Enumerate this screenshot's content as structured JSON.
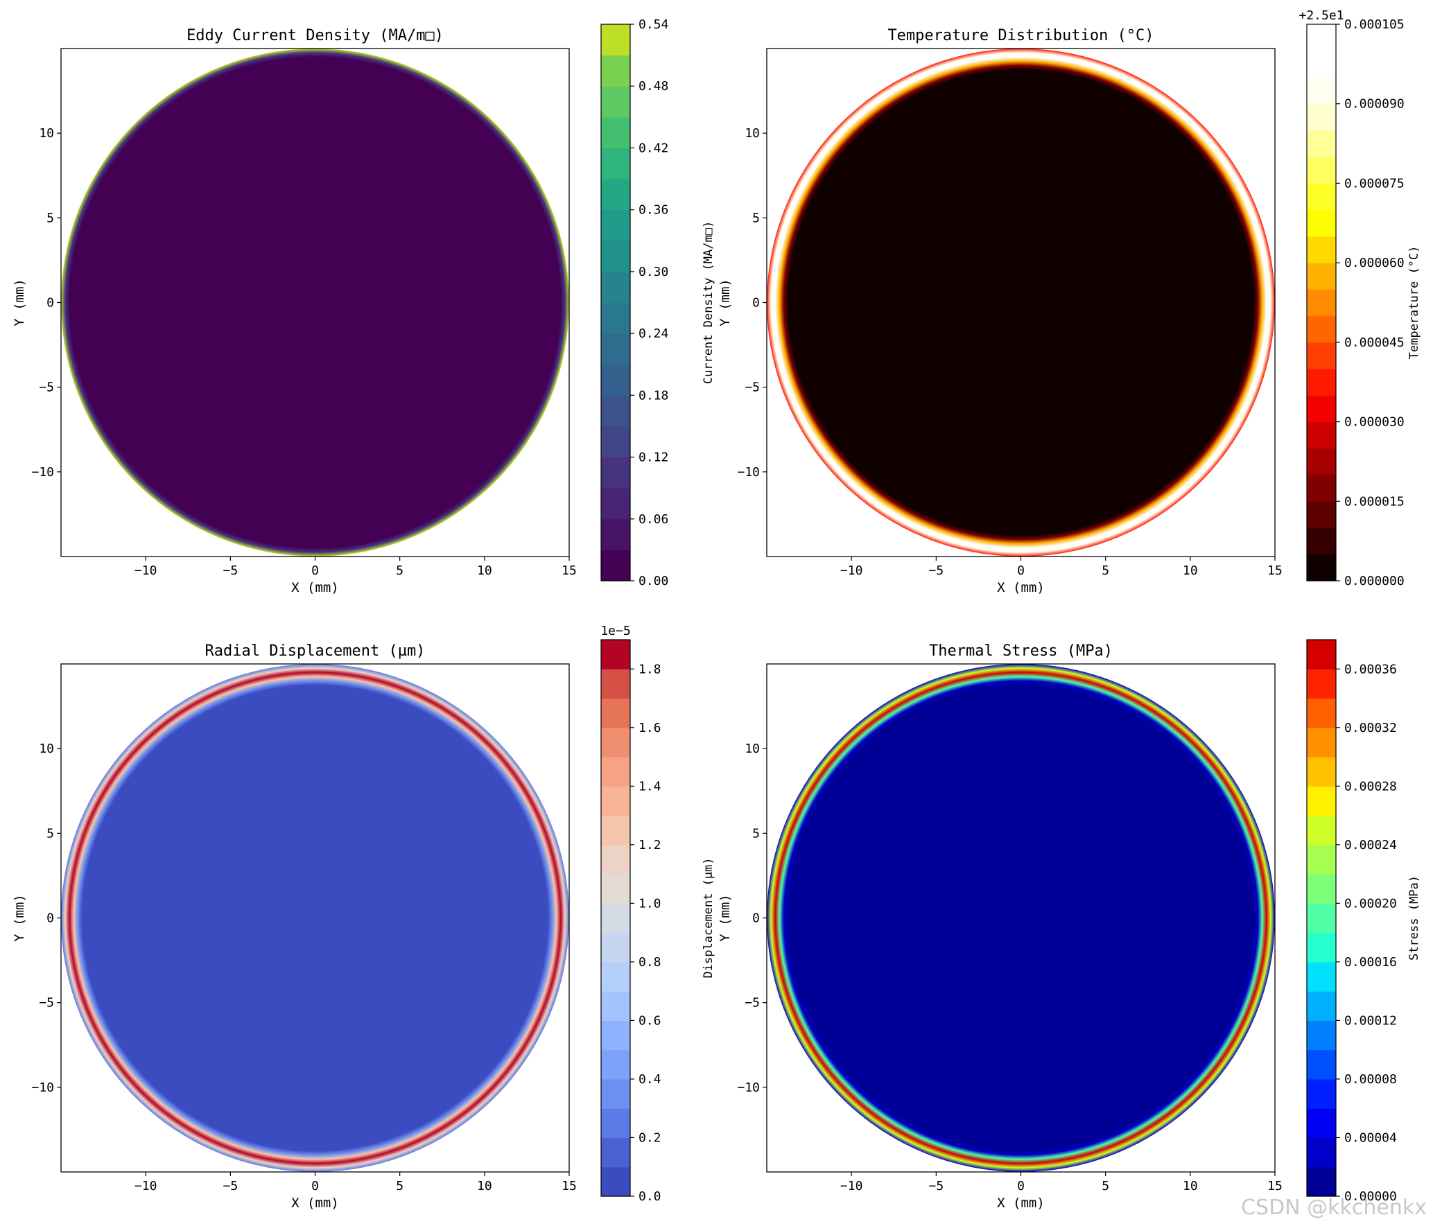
{
  "watermark": "CSDN @kkchenkx",
  "chart_data": [
    {
      "type": "heatmap",
      "title": "Eddy Current Density (MA/m□)",
      "xlabel": "X (mm)",
      "ylabel": "Y (mm)",
      "xlim": [
        -15,
        15
      ],
      "ylim": [
        -15,
        15
      ],
      "x_ticks": [
        -10,
        -5,
        0,
        5,
        10,
        15
      ],
      "y_ticks": [
        -10,
        -5,
        0,
        5,
        10
      ],
      "x_tick_labels": [
        "−10",
        "−5",
        "0",
        "5",
        "10",
        "15"
      ],
      "y_tick_labels": [
        "−10",
        "−5",
        "0",
        "5",
        "10"
      ],
      "domain_radius_mm": 15,
      "colorbar": {
        "label": "Current Density (MA/m□)",
        "range": [
          0,
          0.54
        ],
        "levels": 18,
        "ticks": [
          0,
          0.06,
          0.12,
          0.18,
          0.24,
          0.3,
          0.36,
          0.42,
          0.48,
          0.54
        ],
        "tick_labels": [
          "0.00",
          "0.06",
          "0.12",
          "0.18",
          "0.24",
          "0.30",
          "0.36",
          "0.42",
          "0.48",
          "0.54"
        ],
        "offset_text": "",
        "colormap": "viridis",
        "colors": [
          "#440154",
          "#471365",
          "#482475",
          "#463480",
          "#414487",
          "#3b528b",
          "#355f8d",
          "#2f6c8e",
          "#2a788e",
          "#25848e",
          "#21918c",
          "#1e9c89",
          "#22a884",
          "#2fb47c",
          "#44bf70",
          "#5ec962",
          "#7ad151",
          "#bddf26"
        ]
      },
      "interior_value": 0.0,
      "ring": {
        "peak_radius_mm": 15,
        "peak_value": 0.54,
        "width_mm": 0.2
      }
    },
    {
      "type": "heatmap",
      "title": "Temperature Distribution (°C)",
      "xlabel": "X (mm)",
      "ylabel": "Y (mm)",
      "xlim": [
        -15,
        15
      ],
      "ylim": [
        -15,
        15
      ],
      "x_ticks": [
        -10,
        -5,
        0,
        5,
        10,
        15
      ],
      "y_ticks": [
        -10,
        -5,
        0,
        5,
        10
      ],
      "x_tick_labels": [
        "−10",
        "−5",
        "0",
        "5",
        "10",
        "15"
      ],
      "y_tick_labels": [
        "−10",
        "−5",
        "0",
        "5",
        "10"
      ],
      "domain_radius_mm": 15,
      "colorbar": {
        "label": "Temperature (°C)",
        "range": [
          0,
          0.000105
        ],
        "levels": 21,
        "ticks": [
          0,
          1.5e-05,
          3e-05,
          4.5e-05,
          6e-05,
          7.5e-05,
          9e-05,
          0.000105
        ],
        "tick_labels": [
          "0.000000",
          "0.000015",
          "0.000030",
          "0.000045",
          "0.000060",
          "0.000075",
          "0.000090",
          "0.000105"
        ],
        "offset_text": "+2.5e1",
        "colormap": "hot",
        "colors": [
          "#100000",
          "#360000",
          "#5c0000",
          "#810000",
          "#a70000",
          "#cd0000",
          "#f30000",
          "#ff1a00",
          "#ff4000",
          "#ff6600",
          "#ff8c00",
          "#ffb200",
          "#ffd800",
          "#fffe00",
          "#ffff28",
          "#ffff60",
          "#ffff98",
          "#ffffd0",
          "#fffff0",
          "#ffffff",
          "#ffffff"
        ]
      },
      "interior_value": 0.0,
      "ring": {
        "peak_radius_mm": 14.6,
        "peak_value": 0.000105,
        "width_mm": 0.45
      }
    },
    {
      "type": "heatmap",
      "title": "Radial Displacement (µm)",
      "xlabel": "X (mm)",
      "ylabel": "Y (mm)",
      "xlim": [
        -15,
        15
      ],
      "ylim": [
        -15,
        15
      ],
      "x_ticks": [
        -10,
        -5,
        0,
        5,
        10,
        15
      ],
      "y_ticks": [
        -10,
        -5,
        0,
        5,
        10
      ],
      "x_tick_labels": [
        "−10",
        "−5",
        "0",
        "5",
        "10",
        "15"
      ],
      "y_tick_labels": [
        "−10",
        "−5",
        "0",
        "5",
        "10"
      ],
      "domain_radius_mm": 15,
      "colorbar": {
        "label": "Displacement (µm)",
        "range": [
          0,
          1.9
        ],
        "levels": 19,
        "ticks": [
          0,
          0.2,
          0.4,
          0.6,
          0.8,
          1.0,
          1.2,
          1.4,
          1.6,
          1.8
        ],
        "tick_labels": [
          "0.0",
          "0.2",
          "0.4",
          "0.6",
          "0.8",
          "1.0",
          "1.2",
          "1.4",
          "1.6",
          "1.8"
        ],
        "offset_text": "1e−5",
        "colormap": "coolwarm",
        "colors": [
          "#3b4cc0",
          "#4a63d3",
          "#5b7ae5",
          "#6c8ff1",
          "#7ea2fa",
          "#90b2fe",
          "#a3c2fe",
          "#b5cffb",
          "#c6d6f1",
          "#d5dbe5",
          "#e2dad5",
          "#ecd3c5",
          "#f4c5ad",
          "#f7b596",
          "#f6a385",
          "#f08f70",
          "#e67558",
          "#d55045",
          "#b40426"
        ]
      },
      "interior_value": 0.0,
      "ring": {
        "peak_radius_mm": 14.5,
        "peak_value": 1.9,
        "width_mm": 0.4
      }
    },
    {
      "type": "heatmap",
      "title": "Thermal Stress (MPa)",
      "xlabel": "X (mm)",
      "ylabel": "Y (mm)",
      "xlim": [
        -15,
        15
      ],
      "ylim": [
        -15,
        15
      ],
      "x_ticks": [
        -10,
        -5,
        0,
        5,
        10,
        15
      ],
      "y_ticks": [
        -10,
        -5,
        0,
        5,
        10
      ],
      "x_tick_labels": [
        "−10",
        "−5",
        "0",
        "5",
        "10",
        "15"
      ],
      "y_tick_labels": [
        "−10",
        "−5",
        "0",
        "5",
        "10"
      ],
      "domain_radius_mm": 15,
      "colorbar": {
        "label": "Stress (MPa)",
        "range": [
          0,
          0.00038
        ],
        "levels": 19,
        "ticks": [
          0,
          4e-05,
          8e-05,
          0.00012,
          0.00016,
          0.0002,
          0.00024,
          0.00028,
          0.00032,
          0.00036
        ],
        "tick_labels": [
          "0.00000",
          "0.00004",
          "0.00008",
          "0.00012",
          "0.00016",
          "0.00020",
          "0.00024",
          "0.00028",
          "0.00032",
          "0.00036"
        ],
        "offset_text": "",
        "colormap": "jet",
        "colors": [
          "#000096",
          "#0000c8",
          "#0000f4",
          "#0020ff",
          "#0050ff",
          "#0080ff",
          "#00b0ff",
          "#00e0fa",
          "#28ffce",
          "#50ffa6",
          "#7eff78",
          "#a6ff50",
          "#ceff28",
          "#fff000",
          "#ffc000",
          "#ff9000",
          "#ff6000",
          "#ff2400",
          "#d40000"
        ]
      },
      "interior_value": 0.0,
      "ring": {
        "peak_radius_mm": 14.55,
        "peak_value": 0.00038,
        "width_mm": 0.35
      }
    }
  ]
}
